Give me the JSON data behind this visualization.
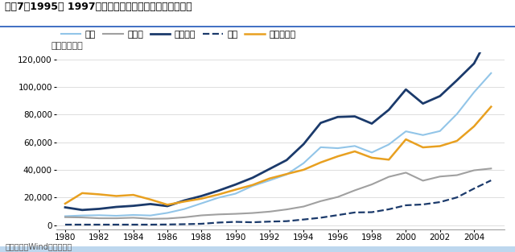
{
  "title": "图表7：1995年 1997年亚洲国家（除中国）出口增长停滞",
  "ylabel": "（百万美元）",
  "source": "资料来源：Wind，华泰研究",
  "xlim": [
    1979.5,
    2005.8
  ],
  "ylim": [
    -3000,
    125000
  ],
  "yticks": [
    0,
    20000,
    40000,
    60000,
    80000,
    100000,
    120000
  ],
  "xticks": [
    1980,
    1982,
    1984,
    1986,
    1988,
    1990,
    1992,
    1994,
    1996,
    1998,
    2000,
    2002,
    2004
  ],
  "series": {
    "泰国": {
      "color": "#92C5E8",
      "linewidth": 1.5,
      "linestyle": "-",
      "data": {
        "1980": 6500,
        "1981": 7000,
        "1982": 7200,
        "1983": 6800,
        "1984": 7400,
        "1985": 7000,
        "1986": 8900,
        "1987": 11700,
        "1988": 15800,
        "1989": 19900,
        "1990": 22800,
        "1991": 28400,
        "1992": 32400,
        "1993": 36700,
        "1994": 44900,
        "1995": 56400,
        "1996": 55700,
        "1997": 57300,
        "1998": 52600,
        "1999": 58400,
        "2000": 67900,
        "2001": 65200,
        "2002": 68100,
        "2003": 80500,
        "2004": 96200,
        "2005": 110000
      }
    },
    "菲律宾": {
      "color": "#A0A0A0",
      "linewidth": 1.5,
      "linestyle": "-",
      "data": {
        "1980": 5800,
        "1981": 5600,
        "1982": 5000,
        "1983": 5000,
        "1984": 5400,
        "1985": 4600,
        "1986": 4800,
        "1987": 5700,
        "1988": 7100,
        "1989": 7800,
        "1990": 8200,
        "1991": 8800,
        "1992": 9800,
        "1993": 11400,
        "1994": 13500,
        "1995": 17400,
        "1996": 20400,
        "1997": 25200,
        "1998": 29500,
        "1999": 35000,
        "2000": 38000,
        "2001": 32200,
        "2002": 35200,
        "2003": 36200,
        "2004": 39700,
        "2005": 41000
      }
    },
    "马来西亚": {
      "color": "#1B3A6B",
      "linewidth": 2.0,
      "linestyle": "-",
      "data": {
        "1980": 12900,
        "1981": 11000,
        "1982": 11800,
        "1983": 13200,
        "1984": 14000,
        "1985": 15300,
        "1986": 13800,
        "1987": 17900,
        "1988": 21100,
        "1989": 25000,
        "1990": 29400,
        "1991": 34300,
        "1992": 40700,
        "1993": 47100,
        "1994": 58700,
        "1995": 74000,
        "1996": 78300,
        "1997": 78700,
        "1998": 73500,
        "1999": 83500,
        "2000": 98200,
        "2001": 88000,
        "2002": 93400,
        "2003": 104900,
        "2004": 117000,
        "2005": 140000
      }
    },
    "越南": {
      "color": "#1B3A6B",
      "linewidth": 1.6,
      "linestyle": "--",
      "data": {
        "1980": 400,
        "1981": 400,
        "1982": 400,
        "1983": 400,
        "1984": 400,
        "1985": 400,
        "1986": 500,
        "1987": 700,
        "1988": 1000,
        "1989": 1900,
        "1990": 2400,
        "1991": 2100,
        "1992": 2600,
        "1993": 2900,
        "1994": 4100,
        "1995": 5400,
        "1996": 7300,
        "1997": 9200,
        "1998": 9400,
        "1999": 11500,
        "2000": 14400,
        "2001": 15000,
        "2002": 16700,
        "2003": 20100,
        "2004": 26500,
        "2005": 32400
      }
    },
    "印度尼西亚": {
      "color": "#E8A020",
      "linewidth": 1.8,
      "linestyle": "-",
      "data": {
        "1980": 15600,
        "1981": 23200,
        "1982": 22300,
        "1983": 21100,
        "1984": 21900,
        "1985": 18600,
        "1986": 14800,
        "1987": 17100,
        "1988": 19200,
        "1989": 22200,
        "1990": 25700,
        "1991": 29100,
        "1992": 33800,
        "1993": 37000,
        "1994": 40100,
        "1995": 45400,
        "1996": 49800,
        "1997": 53400,
        "1998": 48800,
        "1999": 47400,
        "2000": 62100,
        "2001": 56300,
        "2002": 57200,
        "2003": 61000,
        "2004": 71500,
        "2005": 85700
      }
    }
  },
  "legend_order": [
    "泰国",
    "菲律宾",
    "马来西亚",
    "越南",
    "印度尼西亚"
  ],
  "background_color": "#ffffff",
  "header_color": "#4472C4",
  "divider_color": "#4472C4",
  "title_fontsize": 9,
  "label_fontsize": 8,
  "tick_fontsize": 7.5
}
